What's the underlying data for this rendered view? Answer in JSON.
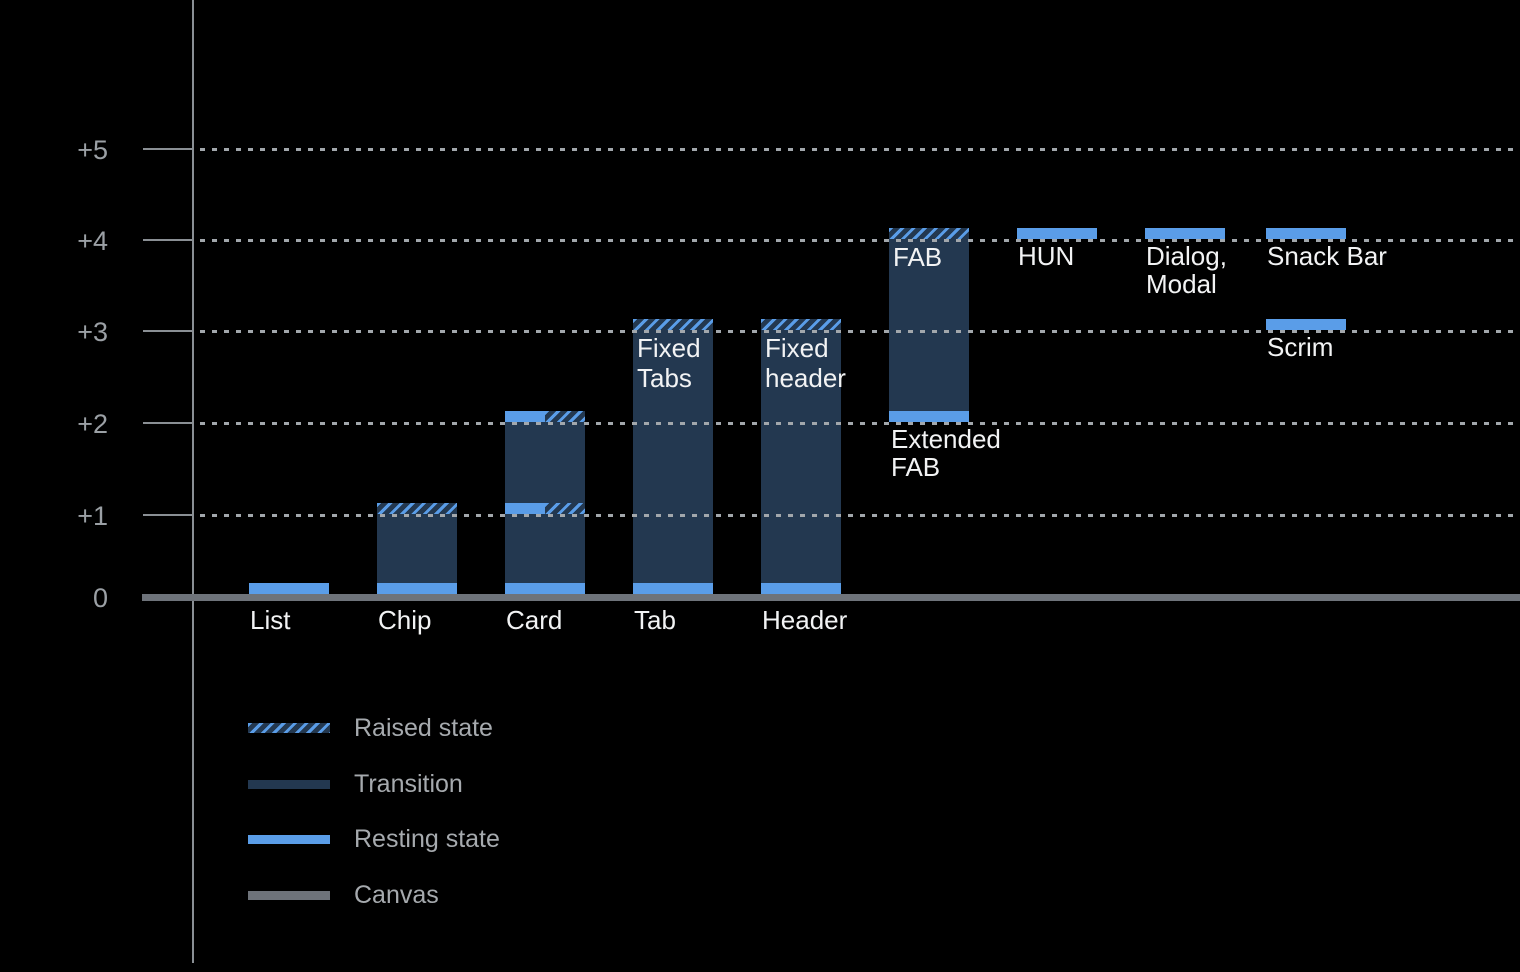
{
  "colors": {
    "background": "#000000",
    "resting_blue": "#5A9DE8",
    "transition_navy": "#233850",
    "canvas_gray": "#6E737A",
    "grid_dash": "#A2A7AC",
    "axis_gray": "#8A8F94",
    "axis_label_gray": "#9BA0A5",
    "bar_label_white": "#F2F3F4",
    "legend_label_gray": "#A6AAAE"
  },
  "y_axis": {
    "ticks": [
      {
        "label": "+5",
        "level": 5
      },
      {
        "label": "+4",
        "level": 4
      },
      {
        "label": "+3",
        "level": 3
      },
      {
        "label": "+2",
        "level": 2
      },
      {
        "label": "+1",
        "level": 1
      },
      {
        "label": "0",
        "level": 0
      }
    ]
  },
  "chart_data": {
    "type": "bar",
    "description": "Elevation levels (0 to +5) of Material components above the canvas, showing resting state, raised state and transition ranges",
    "ylim": [
      0,
      5
    ],
    "grid": "dotted horizontal gridlines at +1 through +5, solid thick canvas line at 0",
    "legend_position": "bottom-left",
    "items": [
      {
        "name": "List",
        "column": 0,
        "bands": [
          {
            "level": 0,
            "style": "resting"
          }
        ],
        "labels": [
          {
            "placement": "axis",
            "lines": [
              "List"
            ]
          }
        ]
      },
      {
        "name": "Chip",
        "column": 1,
        "transition": [
          0,
          1
        ],
        "bands": [
          {
            "level": 0,
            "style": "resting"
          },
          {
            "level": 1,
            "style": "raised"
          }
        ],
        "labels": [
          {
            "placement": "axis",
            "lines": [
              "Chip"
            ]
          }
        ]
      },
      {
        "name": "Card",
        "column": 2,
        "transition": [
          0,
          2
        ],
        "bands": [
          {
            "level": 0,
            "style": "resting"
          },
          {
            "level": 1,
            "style": "split"
          },
          {
            "level": 2,
            "style": "split"
          }
        ],
        "labels": [
          {
            "placement": "axis",
            "lines": [
              "Card"
            ]
          }
        ]
      },
      {
        "name": "Tab",
        "column": 3,
        "transition": [
          0,
          3
        ],
        "bands": [
          {
            "level": 0,
            "style": "resting"
          },
          {
            "level": 3,
            "style": "raised"
          }
        ],
        "labels": [
          {
            "placement": "axis",
            "lines": [
              "Tab"
            ]
          },
          {
            "placement": "inner",
            "lines": [
              "Fixed",
              "Tabs"
            ]
          }
        ]
      },
      {
        "name": "Header",
        "column": 4,
        "transition": [
          0,
          3
        ],
        "bands": [
          {
            "level": 0,
            "style": "resting"
          },
          {
            "level": 3,
            "style": "raised"
          }
        ],
        "labels": [
          {
            "placement": "axis",
            "lines": [
              "Header"
            ]
          },
          {
            "placement": "inner",
            "lines": [
              "Fixed",
              "header"
            ]
          }
        ]
      },
      {
        "name": "FAB / Extended FAB",
        "column": 5,
        "transition": [
          2,
          4
        ],
        "bands": [
          {
            "level": 2,
            "style": "resting"
          },
          {
            "level": 4,
            "style": "raised"
          }
        ],
        "labels": [
          {
            "placement": "inner",
            "lines": [
              "FAB"
            ]
          },
          {
            "placement": "below_bar",
            "lines": [
              "Extended",
              "FAB"
            ]
          }
        ]
      },
      {
        "name": "HUN",
        "column": 6,
        "bands": [
          {
            "level": 4,
            "style": "resting"
          }
        ],
        "labels": [
          {
            "placement": "below_band",
            "level": 4,
            "lines": [
              "HUN"
            ]
          }
        ]
      },
      {
        "name": "Dialog, Modal",
        "column": 7,
        "bands": [
          {
            "level": 4,
            "style": "resting"
          }
        ],
        "labels": [
          {
            "placement": "below_band",
            "level": 4,
            "lines": [
              "Dialog,",
              "Modal"
            ]
          }
        ]
      },
      {
        "name": "Snack Bar",
        "column": 8,
        "bands": [
          {
            "level": 4,
            "style": "resting"
          }
        ],
        "labels": [
          {
            "placement": "below_band",
            "level": 4,
            "lines": [
              "Snack Bar"
            ]
          }
        ]
      },
      {
        "name": "Scrim",
        "column": 8,
        "bands": [
          {
            "level": 3,
            "style": "resting"
          }
        ],
        "labels": [
          {
            "placement": "below_band",
            "level": 3,
            "lines": [
              "Scrim"
            ]
          }
        ]
      }
    ]
  },
  "legend": {
    "items": [
      {
        "label": "Raised state",
        "style": "raised"
      },
      {
        "label": "Transition",
        "style": "transition"
      },
      {
        "label": "Resting state",
        "style": "resting"
      },
      {
        "label": "Canvas",
        "style": "canvas"
      }
    ]
  }
}
